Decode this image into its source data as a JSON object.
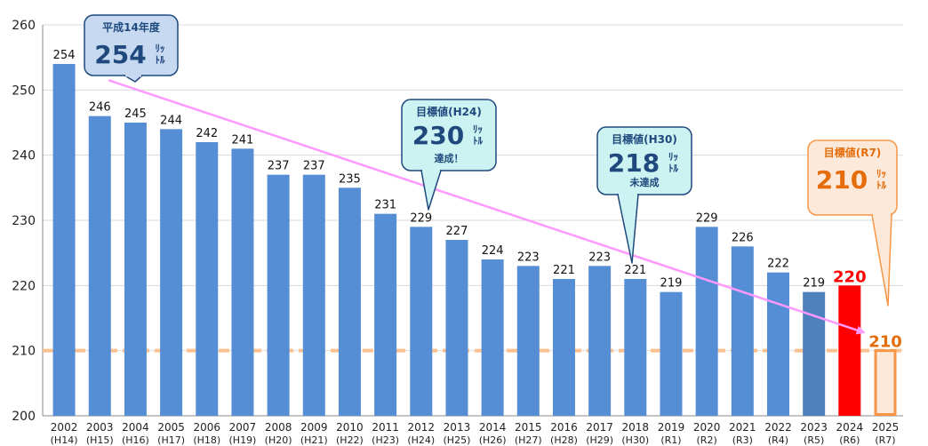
{
  "chart_data": {
    "type": "bar",
    "categories": [
      "2002",
      "2003",
      "2004",
      "2005",
      "2006",
      "2007",
      "2008",
      "2009",
      "2010",
      "2011",
      "2012",
      "2013",
      "2014",
      "2015",
      "2016",
      "2017",
      "2018",
      "2019",
      "2020",
      "2021",
      "2022",
      "2023",
      "2024",
      "2025"
    ],
    "era_labels": [
      "(H14)",
      "(H15)",
      "(H16)",
      "(H17)",
      "(H18)",
      "(H19)",
      "(H20)",
      "(H21)",
      "(H22)",
      "(H23)",
      "(H24)",
      "(H25)",
      "(H26)",
      "(H27)",
      "(H28)",
      "(H29)",
      "(H30)",
      "(R1)",
      "(R2)",
      "(R3)",
      "(R4)",
      "(R5)",
      "(R6)",
      "(R7)"
    ],
    "values": [
      254,
      246,
      245,
      244,
      242,
      241,
      237,
      237,
      235,
      231,
      229,
      227,
      224,
      223,
      221,
      223,
      221,
      219,
      229,
      226,
      222,
      219,
      220,
      210
    ],
    "value_labels": [
      "254",
      "246",
      "245",
      "244",
      "242",
      "241",
      "237",
      "237",
      "235",
      "231",
      "229",
      "227",
      "224",
      "223",
      "221",
      "223",
      "221",
      "219",
      "229",
      "226",
      "222",
      "219",
      "220",
      "210"
    ],
    "ylim": [
      200,
      260
    ],
    "yticks": [
      200,
      210,
      220,
      230,
      240,
      250,
      260
    ],
    "ytick_labels": [
      "200",
      "210",
      "220",
      "230",
      "240",
      "250",
      "260"
    ],
    "grid": true,
    "target_line": 210,
    "colors": {
      "bar": "#558ed5",
      "bar_2023": "#4f81bd",
      "bar_2024": "#ff0000",
      "bar_2025_fill": "#fde9d9",
      "bar_2025_stroke": "#f79646",
      "target_line": "#fac090",
      "trend_arrow": "#ff99ff",
      "label_2024": "#ff0000",
      "label_2025": "#e46c0a"
    },
    "annotations": [
      {
        "name": "callout-h14",
        "head": "平成14年度",
        "value": "254",
        "unit_top": "ﾘｯ",
        "unit_bottom": "ﾄﾙ",
        "note": "",
        "fill": "#c6d9f1",
        "stroke": "#1f497d",
        "text": "#1f497d"
      },
      {
        "name": "callout-h24",
        "head": "目標値(H24)",
        "value": "230",
        "unit_top": "ﾘｯ",
        "unit_bottom": "ﾄﾙ",
        "note": "達成！",
        "fill": "#ccf2f2",
        "stroke": "#1f497d",
        "text": "#1f497d"
      },
      {
        "name": "callout-h30",
        "head": "目標値(H30)",
        "value": "218",
        "unit_top": "ﾘｯ",
        "unit_bottom": "ﾄﾙ",
        "note": "未達成",
        "fill": "#ccf2f2",
        "stroke": "#1f497d",
        "text": "#1f497d"
      },
      {
        "name": "callout-r7",
        "head": "目標値(R7)",
        "value": "210",
        "unit_top": "ﾘｯ",
        "unit_bottom": "ﾄﾙ",
        "note": "",
        "fill": "#fde9d9",
        "stroke": "#f79646",
        "text": "#e46c0a"
      }
    ]
  }
}
